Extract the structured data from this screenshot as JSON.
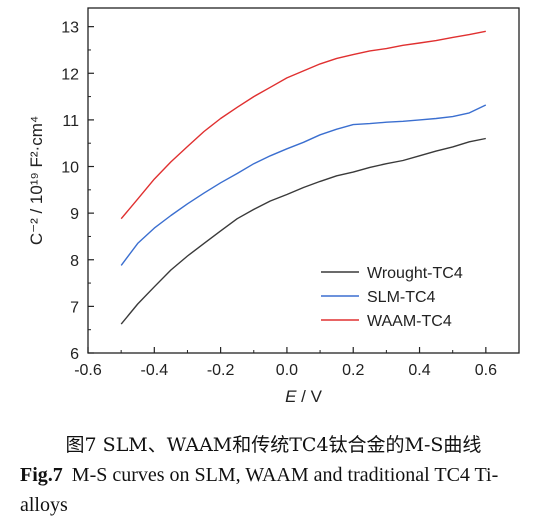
{
  "chart_data": {
    "type": "line",
    "xlabel_var": "E",
    "xlabel_unit": " / V",
    "ylabel": "C⁻² / 10¹⁹ F²·cm⁴",
    "xlim": [
      -0.6,
      0.7
    ],
    "ylim": [
      6,
      13.4
    ],
    "x_ticks": [
      "-0.6",
      "-0.4",
      "-0.2",
      "0.0",
      "0.2",
      "0.4",
      "0.6"
    ],
    "y_ticks": [
      "6",
      "7",
      "8",
      "9",
      "10",
      "11",
      "12",
      "13"
    ],
    "legend_position": "bottom-right",
    "series": [
      {
        "name": "Wrought-TC4",
        "color": "#3a3a3a",
        "points": [
          [
            -0.5,
            6.62
          ],
          [
            -0.45,
            7.05
          ],
          [
            -0.4,
            7.42
          ],
          [
            -0.35,
            7.78
          ],
          [
            -0.3,
            8.08
          ],
          [
            -0.25,
            8.35
          ],
          [
            -0.2,
            8.62
          ],
          [
            -0.15,
            8.88
          ],
          [
            -0.1,
            9.08
          ],
          [
            -0.05,
            9.26
          ],
          [
            0.0,
            9.4
          ],
          [
            0.05,
            9.55
          ],
          [
            0.1,
            9.68
          ],
          [
            0.15,
            9.8
          ],
          [
            0.2,
            9.88
          ],
          [
            0.25,
            9.98
          ],
          [
            0.3,
            10.06
          ],
          [
            0.35,
            10.13
          ],
          [
            0.4,
            10.23
          ],
          [
            0.45,
            10.33
          ],
          [
            0.5,
            10.42
          ],
          [
            0.55,
            10.53
          ],
          [
            0.6,
            10.6
          ]
        ]
      },
      {
        "name": "SLM-TC4",
        "color": "#3b6fd0",
        "points": [
          [
            -0.5,
            7.88
          ],
          [
            -0.45,
            8.35
          ],
          [
            -0.4,
            8.68
          ],
          [
            -0.35,
            8.95
          ],
          [
            -0.3,
            9.2
          ],
          [
            -0.25,
            9.43
          ],
          [
            -0.2,
            9.65
          ],
          [
            -0.15,
            9.85
          ],
          [
            -0.1,
            10.06
          ],
          [
            -0.05,
            10.23
          ],
          [
            0.0,
            10.38
          ],
          [
            0.05,
            10.52
          ],
          [
            0.1,
            10.68
          ],
          [
            0.15,
            10.8
          ],
          [
            0.2,
            10.9
          ],
          [
            0.25,
            10.92
          ],
          [
            0.3,
            10.95
          ],
          [
            0.35,
            10.97
          ],
          [
            0.4,
            11.0
          ],
          [
            0.45,
            11.03
          ],
          [
            0.5,
            11.07
          ],
          [
            0.55,
            11.15
          ],
          [
            0.6,
            11.32
          ]
        ]
      },
      {
        "name": "WAAM-TC4",
        "color": "#e03030",
        "points": [
          [
            -0.5,
            8.88
          ],
          [
            -0.45,
            9.3
          ],
          [
            -0.4,
            9.73
          ],
          [
            -0.35,
            10.1
          ],
          [
            -0.3,
            10.43
          ],
          [
            -0.25,
            10.75
          ],
          [
            -0.2,
            11.03
          ],
          [
            -0.15,
            11.27
          ],
          [
            -0.1,
            11.5
          ],
          [
            -0.05,
            11.7
          ],
          [
            0.0,
            11.9
          ],
          [
            0.05,
            12.05
          ],
          [
            0.1,
            12.2
          ],
          [
            0.15,
            12.32
          ],
          [
            0.2,
            12.4
          ],
          [
            0.25,
            12.48
          ],
          [
            0.3,
            12.53
          ],
          [
            0.35,
            12.6
          ],
          [
            0.4,
            12.65
          ],
          [
            0.45,
            12.7
          ],
          [
            0.5,
            12.77
          ],
          [
            0.55,
            12.83
          ],
          [
            0.6,
            12.9
          ]
        ]
      }
    ]
  },
  "caption": {
    "cn": "图7 SLM、WAAM和传统TC4钛合金的M-S曲线",
    "en_label": "Fig.7",
    "en_text": "M-S curves on SLM, WAAM and traditional TC4 Ti-alloys"
  }
}
